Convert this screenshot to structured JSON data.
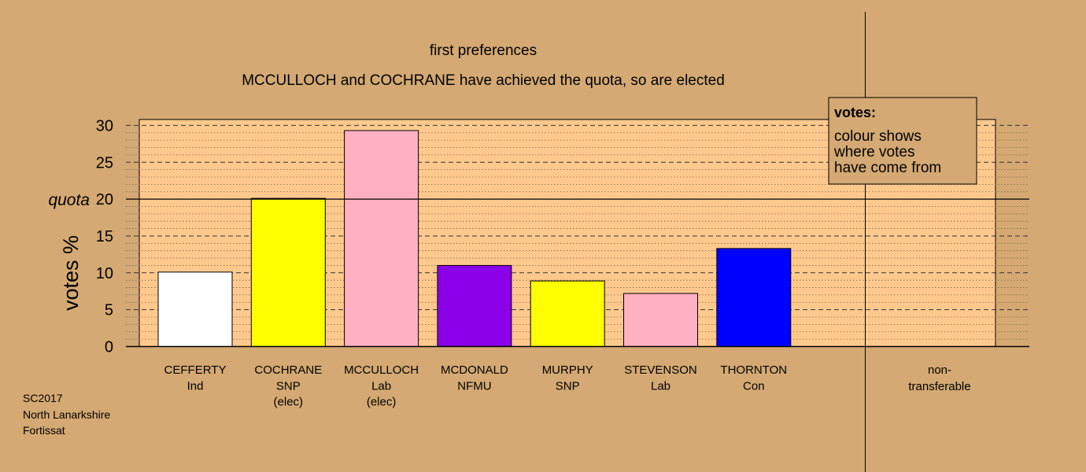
{
  "chart_data": {
    "type": "bar",
    "title": "first preferences",
    "subtitle": "MCCULLOCH and COCHRANE have achieved the quota, so are elected",
    "ylabel": "votes %",
    "ylim": [
      0,
      30.8
    ],
    "yticks": [
      0,
      5,
      10,
      15,
      20,
      25,
      30
    ],
    "quota": 20,
    "quota_label": "quota",
    "grid": true,
    "categories": [
      {
        "name": "CEFFERTY",
        "party": "Ind",
        "status": "",
        "value": 10.1,
        "color": "#ffffff"
      },
      {
        "name": "COCHRANE",
        "party": "SNP",
        "status": "(elec)",
        "value": 20.1,
        "color": "#ffff00"
      },
      {
        "name": "MCCULLOCH",
        "party": "Lab",
        "status": "(elec)",
        "value": 29.3,
        "color": "#ffb0c2"
      },
      {
        "name": "MCDONALD",
        "party": "NFMU",
        "status": "",
        "value": 11.0,
        "color": "#8b00e8"
      },
      {
        "name": "MURPHY",
        "party": "SNP",
        "status": "",
        "value": 8.9,
        "color": "#ffff00"
      },
      {
        "name": "STEVENSON",
        "party": "Lab",
        "status": "",
        "value": 7.2,
        "color": "#ffb0c2"
      },
      {
        "name": "THORNTON",
        "party": "Con",
        "status": "",
        "value": 13.3,
        "color": "#0000ff"
      }
    ],
    "nontransferable": {
      "label_line1": "non-",
      "label_line2": "transferable",
      "value": 0
    },
    "legend": {
      "title": "votes:",
      "lines": [
        "colour shows",
        "where votes",
        "have come from"
      ],
      "position": "top-right"
    }
  },
  "colors": {
    "background": "#d4a973",
    "plot_area": "#ffc98d"
  },
  "footer": {
    "line1": "SC2017",
    "line2": "North Lanarkshire",
    "line3": "Fortissat"
  }
}
